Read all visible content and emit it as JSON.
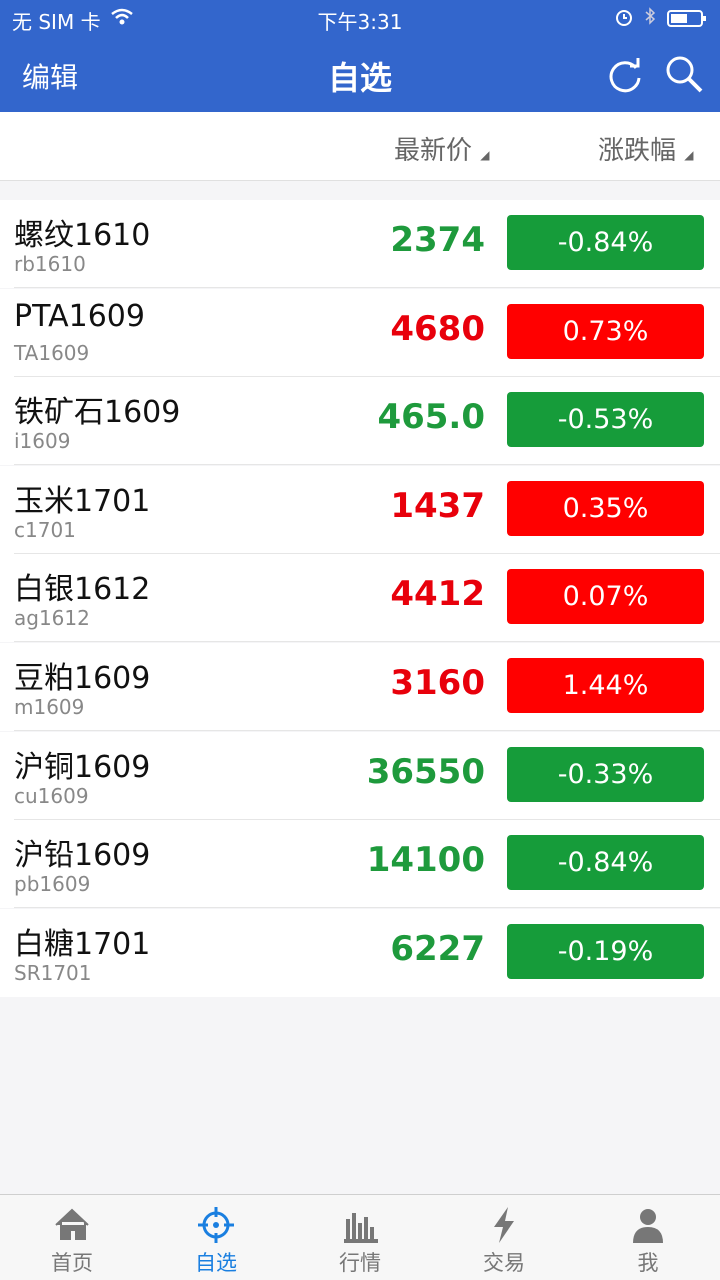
{
  "status_bar": {
    "carrier": "无 SIM 卡",
    "time": "下午3:31"
  },
  "nav_bar": {
    "left_button": "编辑",
    "title": "自选"
  },
  "columns": [
    "最新价",
    "涨跌幅"
  ],
  "rows": [
    {
      "name": "螺纹1610",
      "code": "rb1610",
      "price": "2374",
      "change": "-0.84%"
    },
    {
      "name": "PTA1609",
      "code": "TA1609",
      "price": "4680",
      "change": "0.73%"
    },
    {
      "name": "铁矿石1609",
      "code": "i1609",
      "price": "465.0",
      "change": "-0.53%"
    },
    {
      "name": "玉米1701",
      "code": "c1701",
      "price": "1437",
      "change": "0.35%"
    },
    {
      "name": "白银1612",
      "code": "ag1612",
      "price": "4412",
      "change": "0.07%"
    },
    {
      "name": "豆粕1609",
      "code": "m1609",
      "price": "3160",
      "change": "1.44%"
    },
    {
      "name": "沪铜1609",
      "code": "cu1609",
      "price": "36550",
      "change": "-0.33%"
    },
    {
      "name": "沪铅1609",
      "code": "pb1609",
      "price": "14100",
      "change": "-0.84%"
    },
    {
      "name": "白糖1701",
      "code": "SR1701",
      "price": "6227",
      "change": "-0.19%"
    }
  ],
  "tabs": [
    "首页",
    "自选",
    "行情",
    "交易",
    "我"
  ],
  "active_tab": 1
}
